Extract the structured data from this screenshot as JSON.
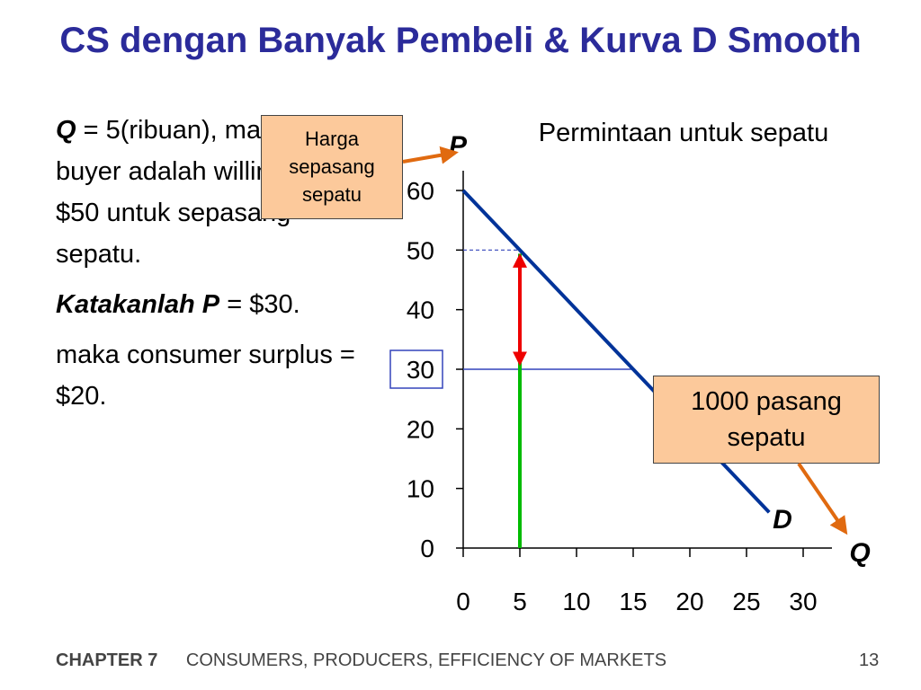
{
  "slide": {
    "title": "CS dengan Banyak Pembeli & Kurva D Smooth",
    "paragraphs": {
      "p1_q": "Q",
      "p1_rest": " = 5(ribuan), marginal buyer adalah willing to pay $50 untuk sepasang sepatu.",
      "p2_lead": "Katakanlah P",
      "p2_rest": " = $30.",
      "p3": "maka consumer surplus = $20."
    },
    "callouts": {
      "harga": "Harga sepasang sepatu",
      "pasang": "1000 pasang sepatu"
    },
    "footer": {
      "chapter": "CHAPTER 7",
      "subtitle": "CONSUMERS, PRODUCERS, EFFICIENCY OF MARKETS",
      "page": "13"
    }
  },
  "chart_data": {
    "type": "line",
    "title": "Permintaan untuk sepatu",
    "xlabel": "Q",
    "ylabel": "P",
    "x_ticks": [
      "0",
      "5",
      "10",
      "15",
      "20",
      "25",
      "30"
    ],
    "y_ticks": [
      "0",
      "10",
      "20",
      "30",
      "40",
      "50",
      "60"
    ],
    "xlim": [
      0,
      30
    ],
    "ylim": [
      0,
      60
    ],
    "series": [
      {
        "name": "D",
        "x": [
          0,
          27
        ],
        "y": [
          60,
          6
        ]
      }
    ],
    "price": 30,
    "marginal_q": 5,
    "marginal_wtp": 50,
    "colors": {
      "demand": "#003399",
      "green": "#00bb00",
      "red": "#ee0000",
      "arrow": "#e06a10",
      "guide": "#3344bb"
    }
  }
}
